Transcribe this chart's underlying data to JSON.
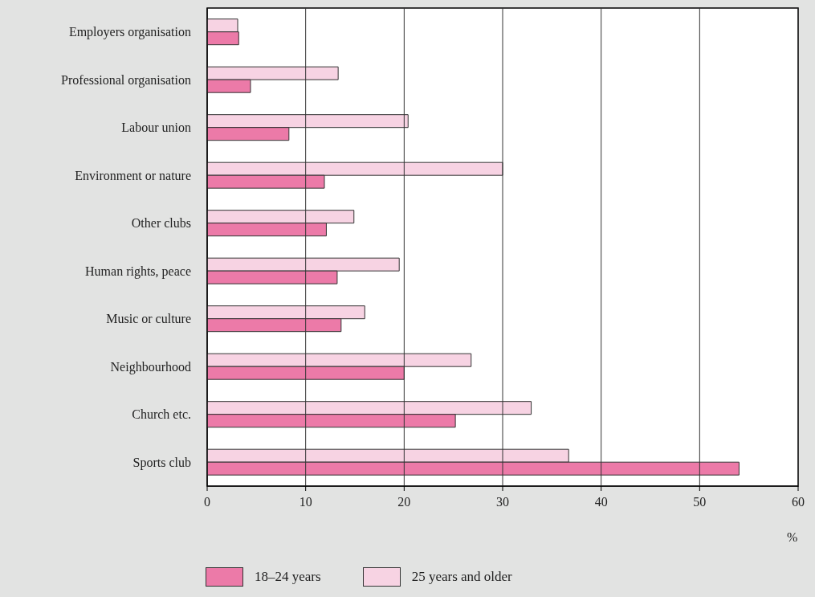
{
  "chart_data": {
    "type": "bar",
    "orientation": "horizontal",
    "xlabel": "%",
    "categories": [
      "Employers organisation",
      "Professional organisation",
      "Labour union",
      "Environment or nature",
      "Other clubs",
      "Human rights, peace",
      "Music or culture",
      "Neighbourhood",
      "Church etc.",
      "Sports club"
    ],
    "series": [
      {
        "name": "18–24 years",
        "color": "#ec7aa8",
        "values": [
          3.2,
          4.4,
          8.3,
          11.9,
          12.1,
          13.2,
          13.6,
          20.0,
          25.2,
          54.0
        ]
      },
      {
        "name": "25 years and older",
        "color": "#f7d3e3",
        "values": [
          3.1,
          13.3,
          20.4,
          30.0,
          14.9,
          19.5,
          16.0,
          26.8,
          32.9,
          36.7
        ]
      }
    ],
    "xlim": [
      0,
      60
    ],
    "xticks": [
      0,
      10,
      20,
      30,
      40,
      50,
      60
    ],
    "grid": "x",
    "legend": "bottom left"
  }
}
